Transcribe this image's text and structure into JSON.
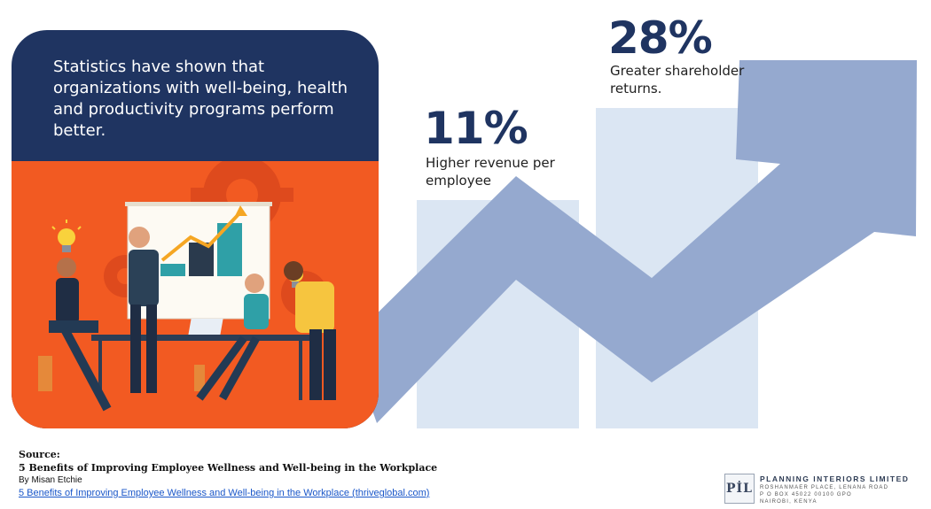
{
  "card": {
    "text": "Statistics have shown that organizations with well-being, health and productivity programs perform better."
  },
  "stats": [
    {
      "value": "11%",
      "label": "Higher revenue per employee"
    },
    {
      "value": "28%",
      "label": "Greater shareholder returns."
    }
  ],
  "source": {
    "heading": "Source:",
    "article": "5 Benefits of Improving Employee Wellness and Well-being in the Workplace",
    "byline": "By Misan Etchie",
    "link": "5 Benefits of Improving Employee Wellness and Well-being in the Workplace (thriveglobal.com)"
  },
  "logo": {
    "mark": "PİL",
    "name": "PLANNING INTERIORS LIMITED",
    "address_1": "ROSHANMAER PLACE, LENANA ROAD",
    "address_2": "P O BOX 45022 00100 GPO",
    "address_3": "NAIROBI, KENYA"
  },
  "colors": {
    "navy": "#1f3461",
    "orange": "#f25a22",
    "arrow": "#95a9cf",
    "bar": "#dbe6f3"
  }
}
